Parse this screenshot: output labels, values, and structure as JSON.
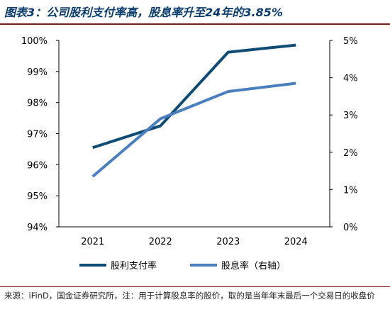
{
  "title": "图表3：公司股利支付率高，股息率升至24年的3.85%",
  "source": "来源：iFinD，国金证券研究所，注：用于计算股息率的股价，取的是当年年末最后一个交易日的收盘价",
  "chart_data": {
    "type": "line",
    "categories": [
      "2021",
      "2022",
      "2023",
      "2024"
    ],
    "series": [
      {
        "name": "股利支付率",
        "axis": "left",
        "values": [
          96.55,
          97.25,
          99.62,
          99.85
        ],
        "color": "#0f4c75"
      },
      {
        "name": "股息率（右轴）",
        "axis": "right",
        "values": [
          1.35,
          2.9,
          3.63,
          3.85
        ],
        "color": "#4a7fbf"
      }
    ],
    "y_left": {
      "ylim": [
        94,
        100
      ],
      "ticks": [
        "94%",
        "95%",
        "96%",
        "97%",
        "98%",
        "99%",
        "100%"
      ]
    },
    "y_right": {
      "ylim": [
        0,
        5
      ],
      "ticks": [
        "0%",
        "1%",
        "2%",
        "3%",
        "4%",
        "5%"
      ]
    },
    "legend_position": "bottom",
    "grid": false
  }
}
